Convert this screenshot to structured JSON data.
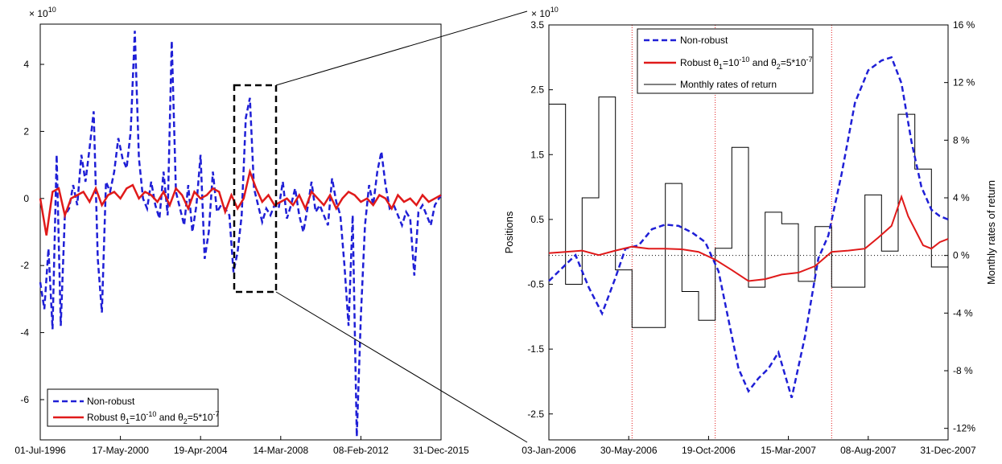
{
  "chart_data": [
    {
      "type": "line",
      "title": "",
      "xlabel": "",
      "ylabel": "",
      "y_multiplier": {
        "base": "× 10",
        "exp": "10"
      },
      "ylim": [
        -7.2,
        5.2
      ],
      "y_ticks": [
        {
          "label": "4",
          "value": 4
        },
        {
          "label": "2",
          "value": 2
        },
        {
          "label": "0",
          "value": 0
        },
        {
          "label": "-2",
          "value": -2
        },
        {
          "label": "-4",
          "value": -4
        },
        {
          "label": "-6",
          "value": -6
        }
      ],
      "x_ticks": [
        "01-Jul-1996",
        "17-May-2000",
        "19-Apr-2004",
        "14-Mar-2008",
        "08-Feb-2012",
        "31-Dec-2015"
      ],
      "x_range": [
        1996.5,
        2016.0
      ],
      "series": [
        {
          "name": "Non-robust",
          "color": "#1f1fd6",
          "style": "dashed",
          "x": [
            1996.5,
            1996.7,
            1996.9,
            1997.1,
            1997.3,
            1997.5,
            1997.7,
            1997.9,
            1998.1,
            1998.3,
            1998.5,
            1998.7,
            1998.9,
            1999.1,
            1999.3,
            1999.5,
            1999.7,
            1999.9,
            2000.1,
            2000.3,
            2000.5,
            2000.7,
            2000.9,
            2001.1,
            2001.3,
            2001.5,
            2001.7,
            2001.9,
            2002.1,
            2002.3,
            2002.5,
            2002.7,
            2002.9,
            2003.1,
            2003.3,
            2003.5,
            2003.7,
            2003.9,
            2004.1,
            2004.3,
            2004.5,
            2004.7,
            2004.9,
            2005.1,
            2005.3,
            2005.5,
            2005.7,
            2005.9,
            2006.1,
            2006.3,
            2006.5,
            2006.7,
            2006.9,
            2007.1,
            2007.3,
            2007.5,
            2007.7,
            2007.9,
            2008.1,
            2008.3,
            2008.5,
            2008.7,
            2008.9,
            2009.1,
            2009.3,
            2009.5,
            2009.7,
            2009.9,
            2010.1,
            2010.3,
            2010.5,
            2010.7,
            2010.9,
            2011.1,
            2011.3,
            2011.5,
            2011.7,
            2011.9,
            2012.1,
            2012.3,
            2012.5,
            2012.7,
            2012.9,
            2013.1,
            2013.3,
            2013.5,
            2013.7,
            2013.9,
            2014.1,
            2014.3,
            2014.5,
            2014.7,
            2014.9,
            2015.1,
            2015.3,
            2015.5,
            2015.7,
            2016.0
          ],
          "y": [
            -2.5,
            -3.3,
            -1.5,
            -3.9,
            1.3,
            -3.8,
            -0.5,
            -0.3,
            0.4,
            -0.2,
            1.3,
            0.5,
            1.5,
            2.6,
            -1.8,
            -3.4,
            0.5,
            0.2,
            0.8,
            1.8,
            1.2,
            0.9,
            2.0,
            5.0,
            1.2,
            0.0,
            -0.3,
            0.5,
            -0.2,
            -0.6,
            0.8,
            -0.5,
            4.7,
            0.2,
            -0.3,
            -0.8,
            0.4,
            -1.0,
            -0.2,
            1.3,
            -1.8,
            -1.0,
            0.8,
            -0.4,
            -0.2,
            -0.3,
            -0.5,
            -2.2,
            -1.6,
            -0.5,
            2.4,
            3.0,
            0.3,
            -0.2,
            -0.7,
            -0.3,
            -0.5,
            -0.2,
            -0.3,
            0.5,
            -0.6,
            -0.2,
            0.3,
            -0.5,
            -1.0,
            -0.3,
            0.5,
            -0.4,
            -0.2,
            -0.5,
            -0.8,
            0.6,
            -0.1,
            -0.5,
            -2.0,
            -3.8,
            -0.5,
            -7.1,
            -3.5,
            -0.8,
            0.4,
            -0.2,
            0.8,
            1.4,
            0.4,
            -0.3,
            -0.2,
            -0.5,
            -0.8,
            -0.4,
            -0.6,
            -2.3,
            -0.4,
            -0.2,
            -0.5,
            -0.8,
            -0.2,
            0.1
          ]
        },
        {
          "name": "Robust θ₁=10⁻¹⁰ and θ₂=5*10⁻⁷",
          "color": "#e01a1a",
          "style": "solid",
          "x": [
            1996.5,
            1996.8,
            1997.1,
            1997.4,
            1997.7,
            1998.0,
            1998.3,
            1998.6,
            1998.9,
            1999.2,
            1999.5,
            1999.8,
            2000.1,
            2000.4,
            2000.7,
            2001.0,
            2001.3,
            2001.6,
            2001.9,
            2002.2,
            2002.5,
            2002.8,
            2003.1,
            2003.4,
            2003.7,
            2004.0,
            2004.3,
            2004.6,
            2004.9,
            2005.2,
            2005.5,
            2005.8,
            2006.1,
            2006.4,
            2006.7,
            2007.0,
            2007.3,
            2007.6,
            2007.9,
            2008.2,
            2008.5,
            2008.8,
            2009.1,
            2009.4,
            2009.7,
            2010.0,
            2010.3,
            2010.6,
            2010.9,
            2011.2,
            2011.5,
            2011.8,
            2012.1,
            2012.4,
            2012.7,
            2013.0,
            2013.3,
            2013.6,
            2013.9,
            2014.2,
            2014.5,
            2014.8,
            2015.1,
            2015.4,
            2015.7,
            2016.0
          ],
          "y": [
            0.0,
            -1.1,
            0.2,
            0.3,
            -0.5,
            0.0,
            0.1,
            0.2,
            -0.1,
            0.3,
            -0.2,
            0.1,
            0.2,
            0.0,
            0.3,
            0.4,
            0.0,
            0.2,
            0.1,
            -0.1,
            0.2,
            -0.2,
            0.3,
            0.1,
            -0.3,
            0.2,
            0.0,
            0.1,
            0.3,
            0.2,
            -0.4,
            0.1,
            -0.3,
            0.0,
            0.8,
            0.3,
            -0.1,
            0.1,
            -0.2,
            -0.1,
            0.0,
            -0.2,
            0.1,
            -0.3,
            0.2,
            0.0,
            -0.2,
            0.1,
            -0.3,
            0.0,
            0.2,
            0.1,
            -0.1,
            0.0,
            -0.2,
            0.1,
            0.0,
            -0.3,
            0.1,
            -0.1,
            0.0,
            -0.2,
            0.1,
            -0.1,
            0.0,
            0.1
          ]
        }
      ],
      "legend": {
        "placement": "bottom-left"
      }
    },
    {
      "type": "line",
      "title": "",
      "xlabel": "",
      "ylabel": "Positions",
      "y2label": "Monthly rates of return",
      "y_multiplier": {
        "base": "× 10",
        "exp": "10"
      },
      "ylim": [
        -2.9,
        3.5
      ],
      "y2lim": [
        -0.128,
        0.16
      ],
      "y_ticks": [
        {
          "label": "3.5",
          "value": 3.5
        },
        {
          "label": "2.5",
          "value": 2.5
        },
        {
          "label": "1.5",
          "value": 1.5
        },
        {
          "label": "0.5",
          "value": 0.5
        },
        {
          "label": "-0.5",
          "value": -0.5
        },
        {
          "label": "-1.5",
          "value": -1.5
        },
        {
          "label": "-2.5",
          "value": -2.5
        }
      ],
      "y2_ticks": [
        {
          "label": "16 %",
          "value": 0.16
        },
        {
          "label": "12 %",
          "value": 0.12
        },
        {
          "label": "8 %",
          "value": 0.08
        },
        {
          "label": "4 %",
          "value": 0.04
        },
        {
          "label": "0 %",
          "value": 0
        },
        {
          "label": "-4 %",
          "value": -0.04
        },
        {
          "label": "-8 %",
          "value": -0.08
        },
        {
          "label": "-12%",
          "value": -0.12
        }
      ],
      "x_ticks": [
        "03-Jan-2006",
        "30-May-2006",
        "19-Oct-2006",
        "15-Mar-2007",
        "08-Aug-2007",
        "31-Dec-2007"
      ],
      "x_range": [
        0,
        24
      ],
      "vertical_markers_at": [
        5,
        10,
        17
      ],
      "series": [
        {
          "name": "Non-robust",
          "color": "#1f1fd6",
          "style": "dashed",
          "x": [
            0,
            0.8,
            1.6,
            2.4,
            3.2,
            4.0,
            4.6,
            5.4,
            6.2,
            7.0,
            7.8,
            8.6,
            9.4,
            10.2,
            10.8,
            11.4,
            12.0,
            12.6,
            13.2,
            13.8,
            14.6,
            15.4,
            16.2,
            16.8,
            17.6,
            18.4,
            19.2,
            20.0,
            20.6,
            21.2,
            21.8,
            22.4,
            23.0,
            23.5,
            24.0
          ],
          "y": [
            -0.45,
            -0.25,
            -0.05,
            -0.55,
            -0.95,
            -0.4,
            0.05,
            0.1,
            0.35,
            0.42,
            0.4,
            0.3,
            0.15,
            -0.3,
            -1.05,
            -1.8,
            -2.15,
            -1.95,
            -1.8,
            -1.55,
            -2.25,
            -1.3,
            -0.1,
            0.25,
            1.2,
            2.3,
            2.8,
            2.95,
            3.0,
            2.6,
            1.7,
            1.0,
            0.65,
            0.55,
            0.5
          ]
        },
        {
          "name": "Robust θ₁=10⁻¹⁰ and θ₂=5*10⁻⁷",
          "color": "#e01a1a",
          "style": "solid",
          "x": [
            0,
            1,
            2,
            3,
            4,
            5,
            6,
            7,
            8,
            9,
            10,
            11,
            12,
            13,
            14,
            15,
            16,
            17,
            18,
            19,
            19.8,
            20.6,
            21.2,
            21.6,
            22.0,
            22.5,
            23.0,
            23.5,
            24.0
          ],
          "y": [
            -0.02,
            0.0,
            0.02,
            -0.05,
            0.02,
            0.08,
            0.05,
            0.05,
            0.04,
            0.0,
            -0.12,
            -0.28,
            -0.45,
            -0.42,
            -0.35,
            -0.32,
            -0.22,
            0.0,
            0.02,
            0.05,
            0.22,
            0.4,
            0.85,
            0.55,
            0.35,
            0.1,
            0.05,
            0.15,
            0.2
          ]
        },
        {
          "name": "Monthly rates of return",
          "color": "#000000",
          "style": "step",
          "axis": "right",
          "values": [
            0.105,
            -0.02,
            0.04,
            0.11,
            -0.01,
            -0.05,
            -0.05,
            0.05,
            -0.025,
            -0.045,
            0.005,
            0.075,
            -0.022,
            0.03,
            0.022,
            -0.018,
            0.02,
            -0.022,
            -0.022,
            0.042,
            0.003,
            0.098,
            0.06,
            -0.008,
            0.06
          ]
        }
      ],
      "legend": {
        "placement": "top-left"
      }
    }
  ]
}
